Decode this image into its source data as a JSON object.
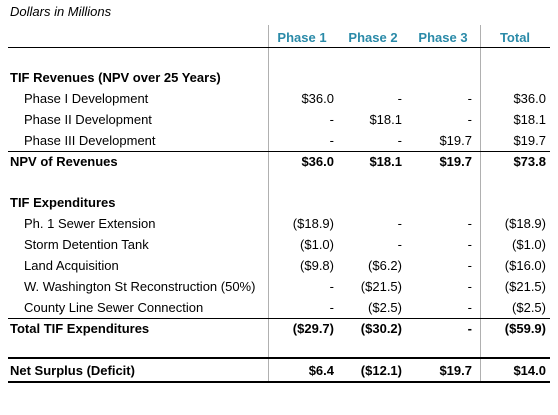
{
  "caption": "Dollars in Millions",
  "columns": [
    "Phase 1",
    "Phase 2",
    "Phase 3",
    "Total"
  ],
  "rows": [
    {
      "label": "TIF Revenues (NPV over 25 Years)",
      "values": [
        "",
        "",
        "",
        ""
      ]
    },
    {
      "label": "Phase I Development",
      "values": [
        "$36.0",
        "-",
        "-",
        "$36.0"
      ]
    },
    {
      "label": "Phase II Development",
      "values": [
        "-",
        "$18.1",
        "-",
        "$18.1"
      ]
    },
    {
      "label": "Phase III Development",
      "values": [
        "-",
        "-",
        "$19.7",
        "$19.7"
      ]
    },
    {
      "label": "NPV of Revenues",
      "values": [
        "$36.0",
        "$18.1",
        "$19.7",
        "$73.8"
      ]
    },
    {
      "label": "TIF Expenditures",
      "values": [
        "",
        "",
        "",
        ""
      ]
    },
    {
      "label": "Ph. 1 Sewer Extension",
      "values": [
        "($18.9)",
        "-",
        "-",
        "($18.9)"
      ]
    },
    {
      "label": "Storm Detention Tank",
      "values": [
        "($1.0)",
        "-",
        "-",
        "($1.0)"
      ]
    },
    {
      "label": "Land Acquisition",
      "values": [
        "($9.8)",
        "($6.2)",
        "-",
        "($16.0)"
      ]
    },
    {
      "label": "W. Washington St Reconstruction (50%)",
      "values": [
        "-",
        "($21.5)",
        "-",
        "($21.5)"
      ]
    },
    {
      "label": "County Line Sewer Connection",
      "values": [
        "-",
        "($2.5)",
        "-",
        "($2.5)"
      ]
    },
    {
      "label": "Total TIF Expenditures",
      "values": [
        "($29.7)",
        "($30.2)",
        "-",
        "($59.9)"
      ]
    },
    {
      "label": "Net Surplus (Deficit)",
      "values": [
        "$6.4",
        "($12.1)",
        "$19.7",
        "$14.0"
      ]
    }
  ]
}
